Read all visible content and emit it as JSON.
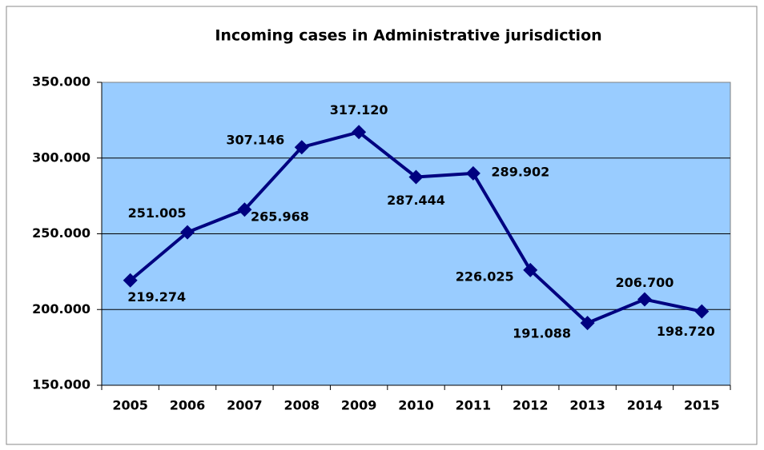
{
  "chart_data": {
    "type": "line",
    "title": "Incoming cases in Administrative jurisdiction",
    "categories": [
      "2005",
      "2006",
      "2007",
      "2008",
      "2009",
      "2010",
      "2011",
      "2012",
      "2013",
      "2014",
      "2015"
    ],
    "series": [
      {
        "color": "#000080",
        "values": [
          219274,
          251005,
          265968,
          307146,
          317120,
          287444,
          289902,
          226025,
          191088,
          206700,
          198720
        ],
        "value_labels": [
          "219.274",
          "251.005",
          "265.968",
          "307.146",
          "317.120",
          "287.444",
          "289.902",
          "226.025",
          "191.088",
          "206.700",
          "198.720"
        ]
      }
    ],
    "ylim": [
      150000,
      350000
    ],
    "yticks": [
      {
        "value": 150000,
        "label": "150.000"
      },
      {
        "value": 200000,
        "label": "200.000"
      },
      {
        "value": 250000,
        "label": "250.000"
      },
      {
        "value": 300000,
        "label": "300.000"
      },
      {
        "value": 350000,
        "label": "350.000"
      }
    ],
    "grid": true,
    "plot_background": "#99ccff"
  }
}
